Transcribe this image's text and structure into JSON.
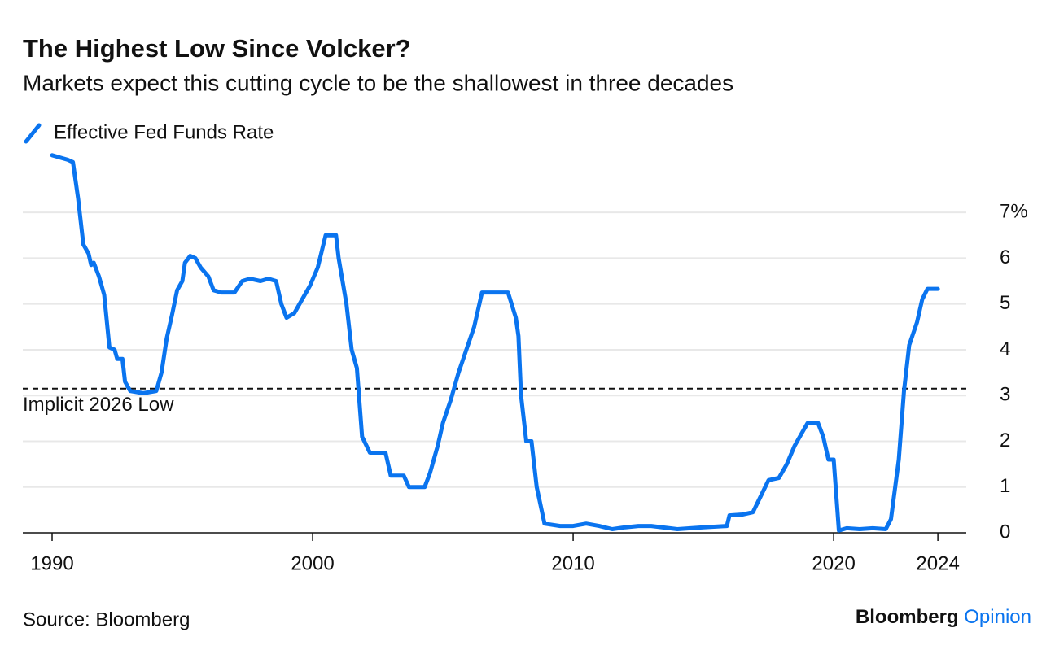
{
  "chart_data": {
    "type": "line",
    "title": "The Highest Low Since Volcker?",
    "subtitle": "Markets expect this cutting cycle to be the shallowest in three decades",
    "series": [
      {
        "name": "Effective Fed Funds Rate",
        "color": "#0a74ef",
        "x": [
          1990.0,
          1990.3,
          1990.6,
          1990.8,
          1991.0,
          1991.2,
          1991.4,
          1991.5,
          1991.6,
          1991.8,
          1992.0,
          1992.2,
          1992.4,
          1992.5,
          1992.7,
          1992.8,
          1993.0,
          1993.5,
          1994.0,
          1994.2,
          1994.4,
          1994.6,
          1994.8,
          1995.0,
          1995.1,
          1995.3,
          1995.5,
          1995.7,
          1996.0,
          1996.2,
          1996.5,
          1997.0,
          1997.3,
          1997.6,
          1998.0,
          1998.3,
          1998.6,
          1998.8,
          1999.0,
          1999.3,
          1999.6,
          1999.9,
          2000.2,
          2000.5,
          2000.9,
          2001.0,
          2001.3,
          2001.5,
          2001.7,
          2001.9,
          2002.2,
          2002.8,
          2003.0,
          2003.5,
          2003.7,
          2004.3,
          2004.5,
          2004.8,
          2005.0,
          2005.3,
          2005.6,
          2005.9,
          2006.2,
          2006.5,
          2007.5,
          2007.8,
          2007.9,
          2008.0,
          2008.2,
          2008.4,
          2008.6,
          2008.9,
          2009.5,
          2010.0,
          2010.5,
          2011.0,
          2011.5,
          2012.0,
          2012.5,
          2013.0,
          2014.0,
          2015.0,
          2015.9,
          2016.0,
          2016.5,
          2016.9,
          2017.2,
          2017.5,
          2017.9,
          2018.2,
          2018.5,
          2018.8,
          2019.0,
          2019.4,
          2019.6,
          2019.8,
          2020.0,
          2020.2,
          2020.5,
          2021.0,
          2021.5,
          2022.0,
          2022.2,
          2022.5,
          2022.7,
          2022.9,
          2023.2,
          2023.4,
          2023.6,
          2024.0
        ],
        "values": [
          8.25,
          8.2,
          8.15,
          8.1,
          7.3,
          6.3,
          6.1,
          5.85,
          5.9,
          5.6,
          5.2,
          4.05,
          4.0,
          3.8,
          3.8,
          3.3,
          3.1,
          3.05,
          3.1,
          3.5,
          4.25,
          4.75,
          5.3,
          5.5,
          5.9,
          6.05,
          6.0,
          5.8,
          5.6,
          5.3,
          5.25,
          5.25,
          5.5,
          5.55,
          5.5,
          5.55,
          5.5,
          5.0,
          4.7,
          4.8,
          5.1,
          5.4,
          5.8,
          6.5,
          6.5,
          6.0,
          5.0,
          4.0,
          3.6,
          2.1,
          1.75,
          1.75,
          1.25,
          1.25,
          1.0,
          1.0,
          1.3,
          1.9,
          2.4,
          2.9,
          3.5,
          4.0,
          4.5,
          5.25,
          5.25,
          4.7,
          4.3,
          3.0,
          2.0,
          2.0,
          1.0,
          0.2,
          0.15,
          0.15,
          0.2,
          0.15,
          0.08,
          0.12,
          0.15,
          0.15,
          0.08,
          0.12,
          0.15,
          0.38,
          0.4,
          0.45,
          0.8,
          1.15,
          1.2,
          1.5,
          1.9,
          2.2,
          2.4,
          2.4,
          2.1,
          1.6,
          1.6,
          0.05,
          0.1,
          0.08,
          0.1,
          0.08,
          0.3,
          1.6,
          3.1,
          4.1,
          4.6,
          5.1,
          5.33,
          5.33
        ]
      }
    ],
    "xlim": [
      1988.875,
      2025.09
    ],
    "xticks": [
      1990,
      2000,
      2010,
      2020,
      2024
    ],
    "ylim": [
      0,
      8.3
    ],
    "yticks": [
      0,
      1,
      2,
      3,
      4,
      5,
      6,
      {
        "value": 7,
        "label": "7%"
      }
    ],
    "grid": true,
    "reference_line": {
      "value": 3.15,
      "label": "Implicit 2026 Low"
    },
    "source": "Source: Bloomberg",
    "brand": "Bloomberg",
    "brand_highlight": "Opinion"
  }
}
